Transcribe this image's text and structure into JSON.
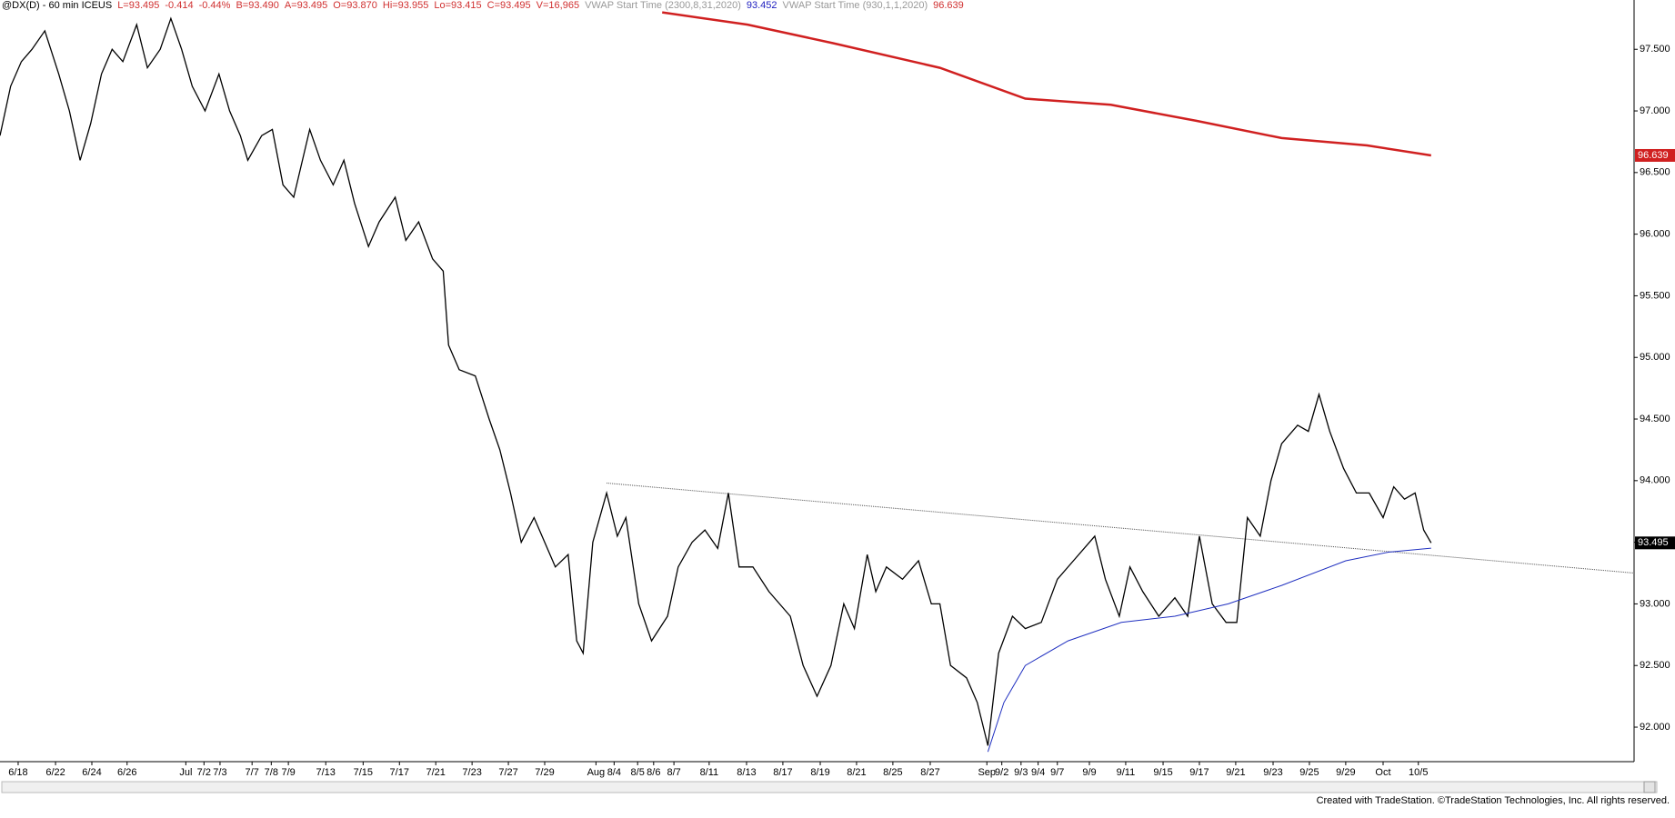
{
  "header": {
    "items": [
      "@DX(D) - 60 min ICEUS",
      "L=93.495",
      "-0.414",
      "-0.44%",
      "B=93.490",
      "A=93.495",
      "O=93.870",
      "Hi=93.955",
      "Lo=93.415",
      "C=93.495",
      "V=16,965",
      "VWAP Start Time (2300,8,31,2020)",
      "93.452",
      "VWAP Start Time (930,1,1,2020)",
      "96.639"
    ],
    "colors": [
      "#000000",
      "#d03030",
      "#d03030",
      "#d03030",
      "#d03030",
      "#d03030",
      "#d03030",
      "#d03030",
      "#d03030",
      "#d03030",
      "#d03030",
      "#999999",
      "#2020c0",
      "#999999",
      "#d03030"
    ]
  },
  "chart_data": {
    "type": "line",
    "xlim": [
      0,
      1530
    ],
    "ylim": [
      91.72,
      97.9
    ],
    "yticks": [
      {
        "value": 92,
        "label": "92.000"
      },
      {
        "value": 92.5,
        "label": "92.500"
      },
      {
        "value": 93,
        "label": "93.000"
      },
      {
        "value": 93.5,
        "label": "93.500"
      },
      {
        "value": 94,
        "label": "94.000"
      },
      {
        "value": 94.5,
        "label": "94.500"
      },
      {
        "value": 95,
        "label": "95.000"
      },
      {
        "value": 95.5,
        "label": "95.500"
      },
      {
        "value": 96,
        "label": "96.000"
      },
      {
        "value": 96.5,
        "label": "96.500"
      },
      {
        "value": 97,
        "label": "97.000"
      },
      {
        "value": 97.5,
        "label": "97.500"
      }
    ],
    "xticks": [
      {
        "value": 17,
        "label": "6/18"
      },
      {
        "value": 52,
        "label": "6/22"
      },
      {
        "value": 86,
        "label": "6/24"
      },
      {
        "value": 119,
        "label": "6/26"
      },
      {
        "value": 174,
        "label": "Jul"
      },
      {
        "value": 191,
        "label": "7/2"
      },
      {
        "value": 206,
        "label": "7/3"
      },
      {
        "value": 236,
        "label": "7/7"
      },
      {
        "value": 254,
        "label": "7/8"
      },
      {
        "value": 270,
        "label": "7/9"
      },
      {
        "value": 305,
        "label": "7/13"
      },
      {
        "value": 340,
        "label": "7/15"
      },
      {
        "value": 374,
        "label": "7/17"
      },
      {
        "value": 408,
        "label": "7/21"
      },
      {
        "value": 442,
        "label": "7/23"
      },
      {
        "value": 476,
        "label": "7/27"
      },
      {
        "value": 510,
        "label": "7/29"
      },
      {
        "value": 558,
        "label": "Aug"
      },
      {
        "value": 575,
        "label": "8/4"
      },
      {
        "value": 597,
        "label": "8/5"
      },
      {
        "value": 612,
        "label": "8/6"
      },
      {
        "value": 631,
        "label": "8/7"
      },
      {
        "value": 664,
        "label": "8/11"
      },
      {
        "value": 699,
        "label": "8/13"
      },
      {
        "value": 733,
        "label": "8/17"
      },
      {
        "value": 768,
        "label": "8/19"
      },
      {
        "value": 802,
        "label": "8/21"
      },
      {
        "value": 836,
        "label": "8/25"
      },
      {
        "value": 871,
        "label": "8/27"
      },
      {
        "value": 924,
        "label": "Sep"
      },
      {
        "value": 938,
        "label": "9/2"
      },
      {
        "value": 956,
        "label": "9/3"
      },
      {
        "value": 972,
        "label": "9/4"
      },
      {
        "value": 990,
        "label": "9/7"
      },
      {
        "value": 1020,
        "label": "9/9"
      },
      {
        "value": 1054,
        "label": "9/11"
      },
      {
        "value": 1089,
        "label": "9/15"
      },
      {
        "value": 1123,
        "label": "9/17"
      },
      {
        "value": 1157,
        "label": "9/21"
      },
      {
        "value": 1192,
        "label": "9/23"
      },
      {
        "value": 1226,
        "label": "9/25"
      },
      {
        "value": 1260,
        "label": "9/29"
      },
      {
        "value": 1295,
        "label": "Oct"
      },
      {
        "value": 1328,
        "label": "10/5"
      }
    ],
    "series": [
      {
        "name": "@DX(D) - 60 min ICEUS",
        "color": "#000000",
        "x": [
          0,
          10,
          20,
          30,
          42,
          55,
          65,
          75,
          85,
          95,
          105,
          115,
          128,
          138,
          150,
          160,
          170,
          180,
          192,
          205,
          215,
          225,
          232,
          245,
          255,
          265,
          275,
          290,
          300,
          312,
          322,
          332,
          345,
          355,
          370,
          380,
          392,
          405,
          415,
          420,
          430,
          445,
          458,
          468,
          478,
          488,
          500,
          510,
          520,
          532,
          540,
          546,
          555,
          568,
          578,
          586,
          598,
          610,
          625,
          635,
          648,
          660,
          672,
          682,
          692,
          705,
          720,
          740,
          752,
          765,
          778,
          790,
          800,
          812,
          820,
          830,
          845,
          860,
          872,
          880,
          890,
          905,
          915,
          925,
          935,
          948,
          960,
          975,
          990,
          1005,
          1025,
          1035,
          1048,
          1058,
          1070,
          1085,
          1100,
          1112,
          1123,
          1135,
          1148,
          1158,
          1168,
          1180,
          1190,
          1200,
          1215,
          1225,
          1235,
          1245,
          1258,
          1270,
          1282,
          1295,
          1305,
          1315,
          1325,
          1333,
          1340
        ],
        "values": [
          96.8,
          97.2,
          97.4,
          97.5,
          97.65,
          97.3,
          97.0,
          96.6,
          96.9,
          97.3,
          97.5,
          97.4,
          97.7,
          97.35,
          97.5,
          97.75,
          97.5,
          97.2,
          97.0,
          97.3,
          97.0,
          96.8,
          96.6,
          96.8,
          96.85,
          96.4,
          96.3,
          96.85,
          96.6,
          96.4,
          96.6,
          96.25,
          95.9,
          96.1,
          96.3,
          95.95,
          96.1,
          95.8,
          95.7,
          95.1,
          94.9,
          94.85,
          94.5,
          94.25,
          93.9,
          93.5,
          93.7,
          93.5,
          93.3,
          93.4,
          92.7,
          92.6,
          93.5,
          93.9,
          93.55,
          93.7,
          93.0,
          92.7,
          92.9,
          93.3,
          93.5,
          93.6,
          93.45,
          93.9,
          93.3,
          93.3,
          93.1,
          92.9,
          92.5,
          92.25,
          92.5,
          93.0,
          92.8,
          93.4,
          93.1,
          93.3,
          93.2,
          93.35,
          93.0,
          93.0,
          92.5,
          92.4,
          92.2,
          91.85,
          92.6,
          92.9,
          92.8,
          92.85,
          93.2,
          93.35,
          93.55,
          93.2,
          92.9,
          93.3,
          93.1,
          92.9,
          93.05,
          92.9,
          93.55,
          93.0,
          92.85,
          92.85,
          93.7,
          93.55,
          94.0,
          94.3,
          94.45,
          94.4,
          94.7,
          94.4,
          94.1,
          93.9,
          93.9,
          93.7,
          93.95,
          93.85,
          93.9,
          93.6,
          93.495
        ]
      },
      {
        "name": "VWAP Start Time (930,1,1,2020)",
        "color": "#d02020",
        "x": [
          620,
          700,
          780,
          880,
          960,
          1040,
          1120,
          1200,
          1280,
          1340
        ],
        "values": [
          97.8,
          97.7,
          97.55,
          97.35,
          97.1,
          97.05,
          96.92,
          96.78,
          96.72,
          96.639
        ]
      },
      {
        "name": "VWAP Start Time (2300,8,31,2020)",
        "color": "#2030c0",
        "x": [
          925,
          940,
          960,
          1000,
          1050,
          1100,
          1150,
          1200,
          1260,
          1300,
          1340
        ],
        "values": [
          91.8,
          92.2,
          92.5,
          92.7,
          92.85,
          92.9,
          93.0,
          93.15,
          93.35,
          93.42,
          93.452
        ]
      }
    ],
    "trendline": {
      "x": [
        568,
        1530
      ],
      "values": [
        93.98,
        93.25
      ],
      "color": "#555555"
    },
    "last_labels": [
      {
        "value": 96.639,
        "label": "96.639",
        "color": "#d02020"
      },
      {
        "value": 93.495,
        "label": "93.495",
        "color": "#000000"
      }
    ]
  },
  "footer": "Created with TradeStation. ©TradeStation Technologies, Inc. All rights reserved."
}
